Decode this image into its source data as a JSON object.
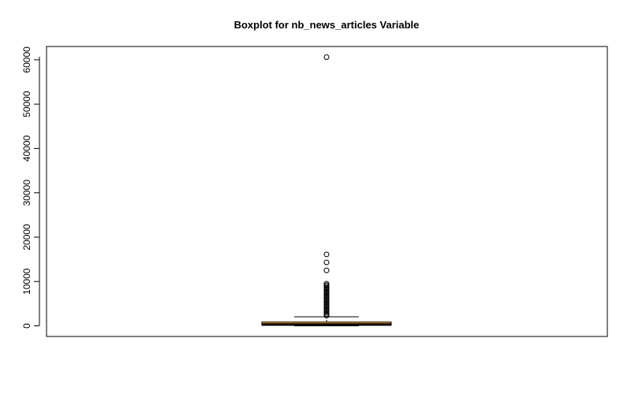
{
  "chart_data": {
    "type": "boxplot",
    "title": "Boxplot for nb_news_articles Variable",
    "xlabel": "",
    "ylabel": "",
    "ylim": [
      -2400,
      63000
    ],
    "yticks": [
      0,
      10000,
      20000,
      30000,
      40000,
      50000,
      60000
    ],
    "ytick_labels": [
      "0",
      "10000",
      "20000",
      "30000",
      "40000",
      "50000",
      "60000"
    ],
    "box_fill_color": "#FFA500",
    "median_color": "#000000",
    "box": {
      "min": 0,
      "q1": 120,
      "median": 300,
      "q3": 850,
      "whisker_high": 2050
    },
    "outliers": [
      60600,
      16100,
      14300,
      12500,
      9500,
      9200,
      8900,
      8600,
      8300,
      8000,
      7700,
      7400,
      7100,
      6800,
      6500,
      6200,
      5900,
      5600,
      5300,
      5000,
      4700,
      4400,
      4100,
      3800,
      3500,
      3200,
      2900,
      2600,
      2300
    ]
  }
}
